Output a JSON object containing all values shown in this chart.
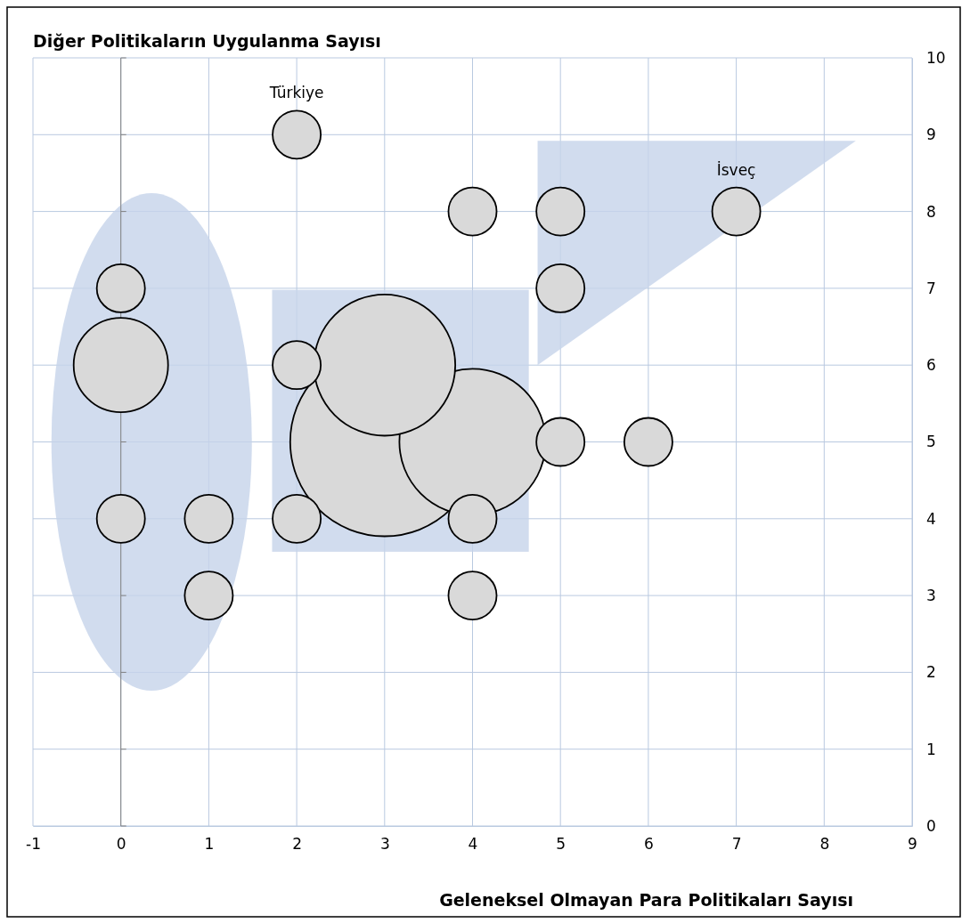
{
  "chart_data": {
    "type": "bubble",
    "ylabel": "Diğer Politikaların Uygulanma Sayısı",
    "xlabel": "Geleneksel Olmayan Para Politikaları Sayısı",
    "x": [
      2,
      4,
      5,
      7,
      0,
      5,
      0,
      2,
      3,
      3,
      4,
      5,
      6,
      0,
      1,
      2,
      4,
      1,
      4
    ],
    "values": [
      9,
      8,
      8,
      8,
      7,
      7,
      6,
      6,
      6,
      5,
      5,
      5,
      5,
      4,
      4,
      4,
      4,
      3,
      3
    ],
    "sizes": [
      0.065,
      0.065,
      0.065,
      0.065,
      0.065,
      0.065,
      0.25,
      0.065,
      0.56,
      1,
      0.6,
      0.065,
      0.065,
      0.065,
      0.065,
      0.065,
      0.065,
      0.065,
      0.065
    ],
    "color": "#d9d9d9",
    "xlim": [
      -1,
      9
    ],
    "xticks": [
      -1,
      0,
      1,
      2,
      3,
      4,
      5,
      6,
      7,
      8,
      9
    ],
    "ylim": [
      0,
      10
    ],
    "yticks": [
      0,
      1,
      2,
      3,
      4,
      5,
      6,
      7,
      8,
      9,
      10
    ],
    "grid": true,
    "annotations": [
      {
        "text": "Türkiye",
        "x": 2,
        "y": 9
      },
      {
        "text": "İsveç",
        "x": 7,
        "y": 8
      }
    ]
  }
}
